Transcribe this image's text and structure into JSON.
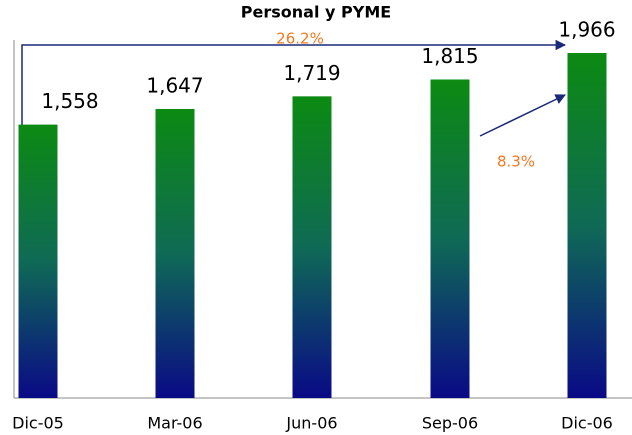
{
  "chart_data": {
    "type": "bar",
    "title": "Personal y PYME",
    "categories": [
      "Dic-05",
      "Mar-06",
      "Jun-06",
      "Sep-06",
      "Dic-06"
    ],
    "values": [
      1558,
      1647,
      1719,
      1815,
      1966
    ],
    "value_labels": [
      "1,558",
      "1,647",
      "1,719",
      "1,815",
      "1,966"
    ],
    "annotations": [
      "26.2%",
      "8.3%"
    ]
  }
}
